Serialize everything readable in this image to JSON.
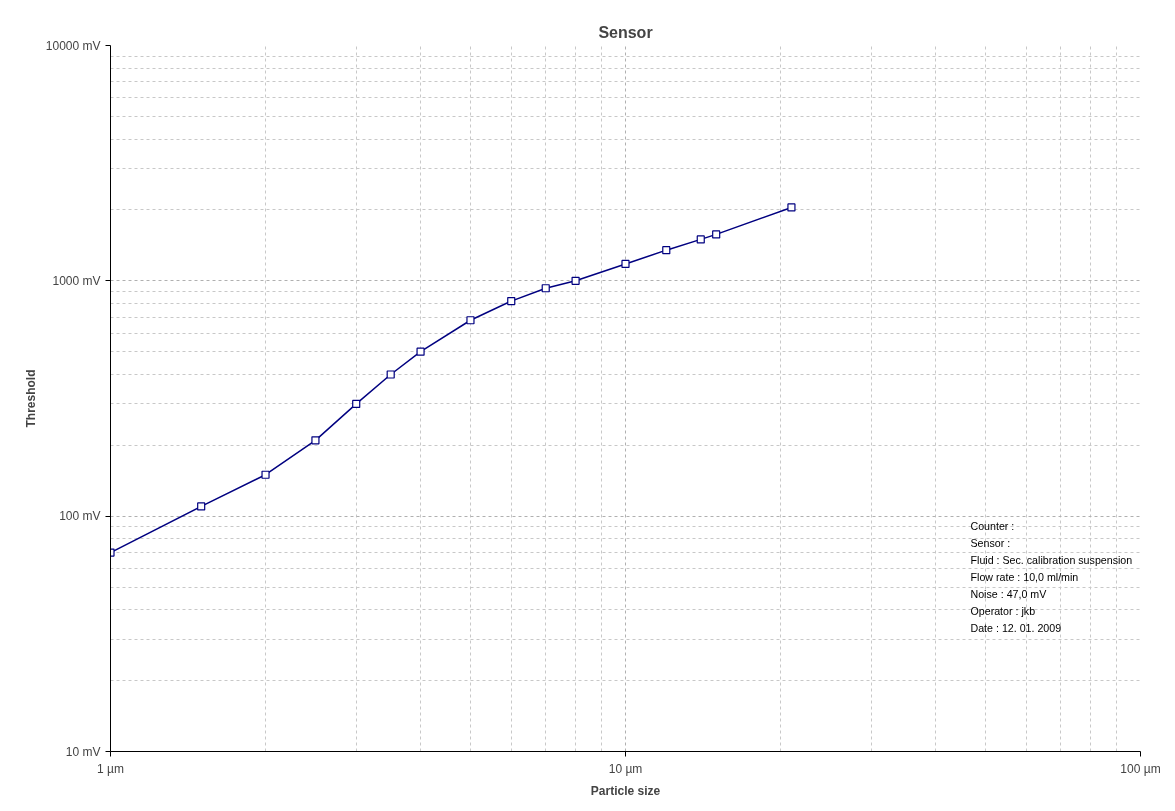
{
  "chart_data": {
    "type": "line",
    "title": "Sensor",
    "xlabel": "Particle size",
    "ylabel": "Threshold",
    "x": [
      1,
      1.5,
      2,
      2.5,
      3,
      3.5,
      4,
      5,
      6,
      7,
      8,
      10,
      12,
      14,
      15,
      21
    ],
    "series": [
      {
        "color": "#000080",
        "values": [
          70,
          110,
          150,
          210,
          300,
          400,
          500,
          680,
          820,
          930,
          1000,
          1180,
          1350,
          1500,
          1575,
          2050
        ]
      }
    ],
    "log": "xy",
    "marker": "square",
    "line_style": "solid",
    "grid": true,
    "xlim": [
      1,
      100
    ],
    "xticks": [
      {
        "value": 1,
        "label": "1 µm"
      },
      {
        "value": 10,
        "label": "10 µm"
      },
      {
        "value": 100,
        "label": "100 µm"
      }
    ],
    "ylim": [
      10,
      10000
    ],
    "yticks": [
      {
        "value": 10,
        "label": "10 mV"
      },
      {
        "value": 100,
        "label": "100 mV"
      },
      {
        "value": 1000,
        "label": "1000 mV"
      },
      {
        "value": 10000,
        "label": "10000 mV"
      }
    ],
    "annotations": [
      "Counter :",
      "Sensor :",
      "Fluid : Sec. calibration suspension",
      "Flow  rate : 10,0 ml/min",
      "Noise : 47,0 mV",
      "Operator : jkb",
      "Date : 12. 01. 2009"
    ]
  }
}
